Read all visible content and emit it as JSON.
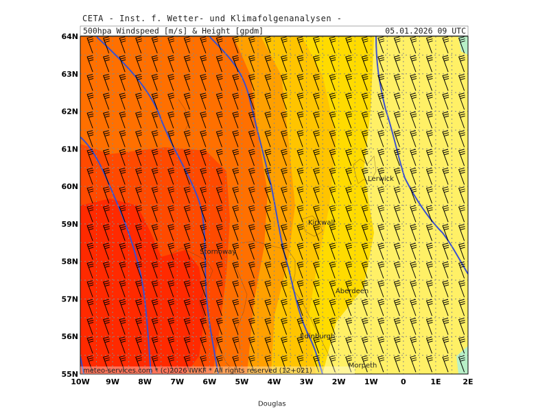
{
  "header": {
    "source": "CETA - Inst. f. Wetter- und Klimafolgenanalysen -",
    "title": "500hpa Windspeed [m/s] & Height [gpdm]",
    "datetime": "05.01.2026 09 UTC"
  },
  "footer": {
    "copyright": "meteo-services.com * (c)2026 IWKF * All rights reserved (12+021)"
  },
  "map": {
    "lon_labels": [
      "10W",
      "9W",
      "8W",
      "7W",
      "6W",
      "5W",
      "4W",
      "3W",
      "2W",
      "1W",
      "0",
      "1E",
      "2E"
    ],
    "lat_labels": [
      "64N",
      "63N",
      "62N",
      "61N",
      "60N",
      "59N",
      "58N",
      "57N",
      "56N",
      "55N"
    ],
    "cities": [
      {
        "name": "Lerwick",
        "lon": -1.1,
        "lat": 60.15
      },
      {
        "name": "Kirkwall",
        "lon": -2.95,
        "lat": 58.98
      },
      {
        "name": "Stornoway",
        "lon": -6.3,
        "lat": 58.2
      },
      {
        "name": "Aberdeen",
        "lon": -2.1,
        "lat": 57.15
      },
      {
        "name": "Edinburgh",
        "lon": -3.2,
        "lat": 55.95
      },
      {
        "name": "Douglas",
        "lon": -4.5,
        "lat": 54.15
      },
      {
        "name": "Morpeth",
        "lon": -1.7,
        "lat": 55.17
      }
    ],
    "colors": {
      "deep_red": "#ff2a00",
      "red_orange": "#ff4a00",
      "orange": "#ff7000",
      "light_orange": "#ffa000",
      "amber": "#ffc400",
      "gold": "#ffdb00",
      "yellow": "#fff066",
      "mint": "#b8f0c8",
      "height_contour": "#3a50d0"
    }
  }
}
